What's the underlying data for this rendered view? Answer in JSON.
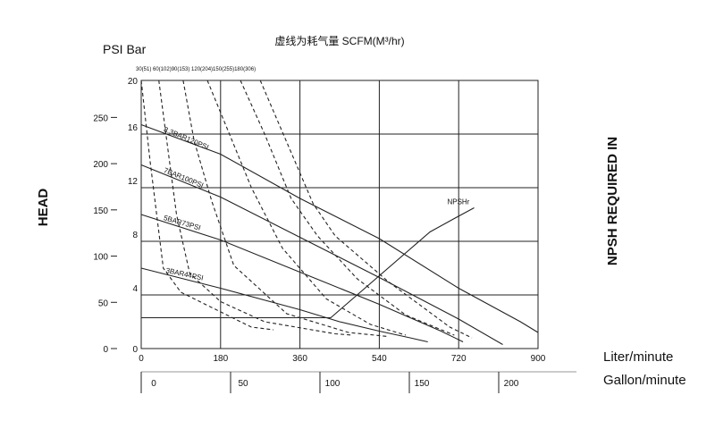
{
  "chart_data": {
    "type": "line",
    "title": "虚线为耗气量 SCFM(M³/hr)",
    "left_axis": {
      "header": "PSI Bar",
      "psi_ticks": [
        0,
        50,
        100,
        150,
        200,
        250
      ],
      "bar_ticks": [
        0,
        4,
        8,
        12,
        16,
        20
      ],
      "label": "HEAD",
      "range_bar": [
        0,
        20
      ],
      "range_psi": [
        0,
        290
      ]
    },
    "right_axis": {
      "label": "NPSH REQUIRED IN"
    },
    "x_axis": {
      "unit_primary": "Liter/minute",
      "ticks_primary": [
        0,
        180,
        360,
        540,
        720,
        900
      ],
      "range": [
        0,
        900
      ],
      "unit_secondary": "Gallon/minute",
      "ticks_secondary": [
        0,
        50,
        100,
        150,
        200
      ]
    },
    "air_top_label": "30(51) 60(102)90(153) 120(204)150(255)180(306)",
    "grid": true,
    "series": [
      {
        "name": "8.3BAR120PSI",
        "kind": "solid",
        "x": [
          0,
          180,
          360,
          540,
          720,
          860,
          900
        ],
        "y": [
          16.7,
          14.5,
          11.2,
          8.2,
          4.5,
          2.0,
          1.2
        ]
      },
      {
        "name": "7BAR100PSI",
        "kind": "solid",
        "x": [
          0,
          180,
          360,
          540,
          720,
          820
        ],
        "y": [
          13.7,
          11.3,
          8.3,
          5.3,
          2.2,
          0.3
        ]
      },
      {
        "name": "5BAR73PSI",
        "kind": "solid",
        "x": [
          0,
          180,
          360,
          540,
          680,
          730
        ],
        "y": [
          10.0,
          8.1,
          5.7,
          3.3,
          1.3,
          0.5
        ]
      },
      {
        "name": "3BAR44PSI",
        "kind": "solid",
        "x": [
          0,
          180,
          360,
          450,
          540,
          610,
          650
        ],
        "y": [
          6.0,
          4.5,
          2.9,
          2.0,
          1.3,
          0.8,
          0.5
        ]
      },
      {
        "name": "NPSHr",
        "kind": "solid",
        "x": [
          0,
          430,
          655,
          710,
          755
        ],
        "y": [
          2.3,
          2.3,
          8.7,
          9.7,
          10.5
        ]
      },
      {
        "name": "30(51)",
        "kind": "dash",
        "x": [
          0,
          20,
          50,
          90,
          250,
          300
        ],
        "y": [
          20,
          14,
          6,
          4.2,
          1.6,
          1.4
        ]
      },
      {
        "name": "60(102)",
        "kind": "dash",
        "x": [
          40,
          60,
          80,
          110,
          180,
          280,
          440,
          480
        ],
        "y": [
          20,
          15,
          10,
          5.6,
          3.5,
          2.0,
          1.1,
          1.0
        ]
      },
      {
        "name": "90(153)",
        "kind": "dash",
        "x": [
          95,
          120,
          160,
          210,
          330,
          470,
          560
        ],
        "y": [
          20,
          15.5,
          11,
          6.2,
          2.6,
          1.2,
          0.9
        ]
      },
      {
        "name": "120(204)",
        "kind": "dash",
        "x": [
          150,
          200,
          250,
          320,
          420,
          520,
          600
        ],
        "y": [
          20,
          16,
          12,
          7.5,
          3.7,
          1.8,
          1.0
        ]
      },
      {
        "name": "150(255)",
        "kind": "dash",
        "x": [
          225,
          280,
          340,
          400,
          490,
          600,
          710
        ],
        "y": [
          20,
          16,
          11.2,
          8.4,
          5.2,
          2.5,
          1.0
        ]
      },
      {
        "name": "180(306)",
        "kind": "dash",
        "x": [
          270,
          330,
          390,
          440,
          560,
          700,
          750
        ],
        "y": [
          20,
          15.4,
          10.8,
          8.4,
          5.0,
          1.6,
          0.8
        ]
      }
    ]
  }
}
